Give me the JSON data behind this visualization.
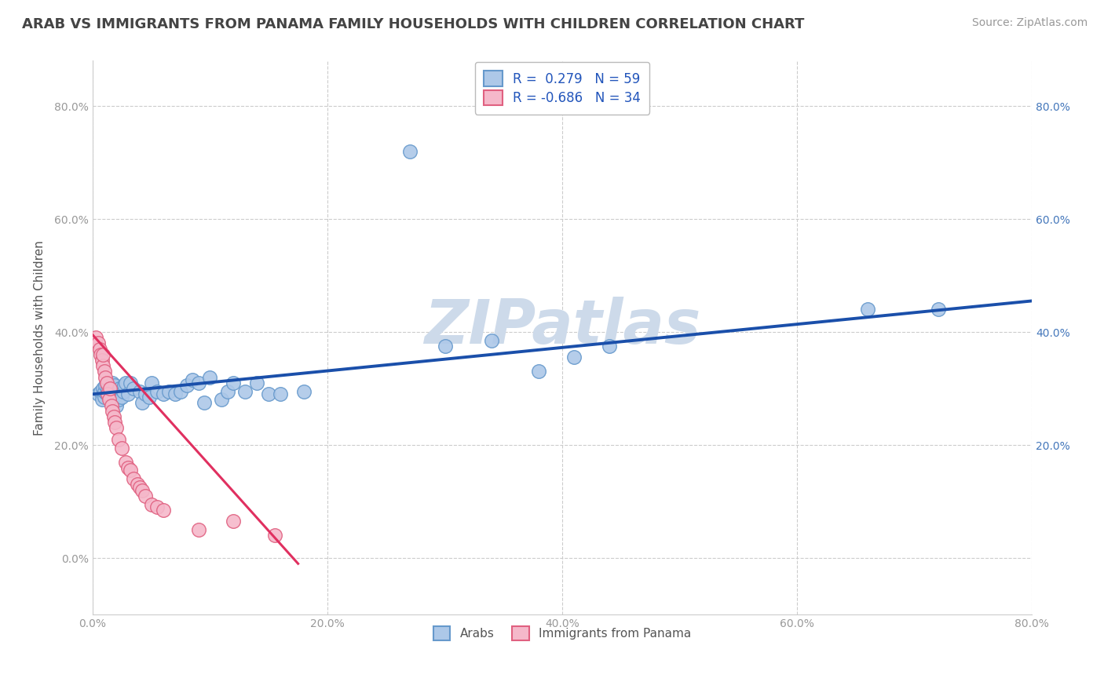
{
  "title": "ARAB VS IMMIGRANTS FROM PANAMA FAMILY HOUSEHOLDS WITH CHILDREN CORRELATION CHART",
  "source": "Source: ZipAtlas.com",
  "ylabel": "Family Households with Children",
  "watermark": "ZIPatlas",
  "xlim": [
    0.0,
    0.8
  ],
  "ylim": [
    -0.1,
    0.88
  ],
  "xticks": [
    0.0,
    0.2,
    0.4,
    0.6,
    0.8
  ],
  "yticks": [
    0.0,
    0.2,
    0.4,
    0.6,
    0.8
  ],
  "xticklabels": [
    "0.0%",
    "20.0%",
    "40.0%",
    "60.0%",
    "80.0%"
  ],
  "yticklabels": [
    "0.0%",
    "20.0%",
    "40.0%",
    "60.0%",
    "80.0%"
  ],
  "right_yticks": [
    0.2,
    0.4,
    0.6,
    0.8
  ],
  "right_yticklabels": [
    "20.0%",
    "40.0%",
    "60.0%",
    "80.0%"
  ],
  "arab_color": "#adc8e8",
  "arab_edge_color": "#6699cc",
  "panama_color": "#f5b8ca",
  "panama_edge_color": "#e06080",
  "trend_arab_color": "#1a4faa",
  "trend_panama_color": "#e03060",
  "legend_arab_R": "0.279",
  "legend_arab_N": "59",
  "legend_panama_R": "-0.686",
  "legend_panama_N": "34",
  "grid_color": "#cccccc",
  "background_color": "#ffffff",
  "title_fontsize": 13,
  "axis_label_fontsize": 11,
  "tick_fontsize": 10,
  "legend_fontsize": 12,
  "watermark_fontsize": 56,
  "watermark_color": "#cddaea",
  "source_fontsize": 10,
  "arab_x": [
    0.005,
    0.007,
    0.008,
    0.009,
    0.01,
    0.01,
    0.011,
    0.012,
    0.013,
    0.014,
    0.015,
    0.016,
    0.016,
    0.017,
    0.018,
    0.018,
    0.019,
    0.02,
    0.021,
    0.022,
    0.023,
    0.025,
    0.026,
    0.027,
    0.028,
    0.03,
    0.032,
    0.035,
    0.04,
    0.042,
    0.045,
    0.048,
    0.05,
    0.055,
    0.06,
    0.065,
    0.07,
    0.075,
    0.08,
    0.085,
    0.09,
    0.095,
    0.1,
    0.11,
    0.115,
    0.12,
    0.13,
    0.14,
    0.15,
    0.16,
    0.18,
    0.27,
    0.3,
    0.34,
    0.38,
    0.41,
    0.44,
    0.66,
    0.72
  ],
  "arab_y": [
    0.29,
    0.295,
    0.28,
    0.3,
    0.285,
    0.295,
    0.305,
    0.29,
    0.3,
    0.285,
    0.295,
    0.28,
    0.3,
    0.31,
    0.285,
    0.295,
    0.305,
    0.27,
    0.29,
    0.28,
    0.3,
    0.285,
    0.295,
    0.305,
    0.31,
    0.29,
    0.31,
    0.3,
    0.295,
    0.275,
    0.29,
    0.285,
    0.31,
    0.295,
    0.29,
    0.295,
    0.29,
    0.295,
    0.305,
    0.315,
    0.31,
    0.275,
    0.32,
    0.28,
    0.295,
    0.31,
    0.295,
    0.31,
    0.29,
    0.29,
    0.295,
    0.72,
    0.375,
    0.385,
    0.33,
    0.355,
    0.375,
    0.44,
    0.44
  ],
  "panama_x": [
    0.003,
    0.005,
    0.006,
    0.007,
    0.008,
    0.009,
    0.009,
    0.01,
    0.011,
    0.012,
    0.013,
    0.014,
    0.015,
    0.016,
    0.017,
    0.018,
    0.019,
    0.02,
    0.022,
    0.025,
    0.028,
    0.03,
    0.032,
    0.035,
    0.038,
    0.04,
    0.042,
    0.045,
    0.05,
    0.055,
    0.06,
    0.09,
    0.12,
    0.155
  ],
  "panama_y": [
    0.39,
    0.38,
    0.37,
    0.36,
    0.35,
    0.34,
    0.36,
    0.33,
    0.32,
    0.31,
    0.29,
    0.28,
    0.3,
    0.27,
    0.26,
    0.25,
    0.24,
    0.23,
    0.21,
    0.195,
    0.17,
    0.16,
    0.155,
    0.14,
    0.13,
    0.125,
    0.12,
    0.11,
    0.095,
    0.09,
    0.085,
    0.05,
    0.065,
    0.04
  ],
  "arab_trend_x": [
    0.0,
    0.8
  ],
  "arab_trend_y": [
    0.29,
    0.455
  ],
  "panama_trend_x": [
    0.0,
    0.175
  ],
  "panama_trend_y": [
    0.395,
    -0.01
  ]
}
